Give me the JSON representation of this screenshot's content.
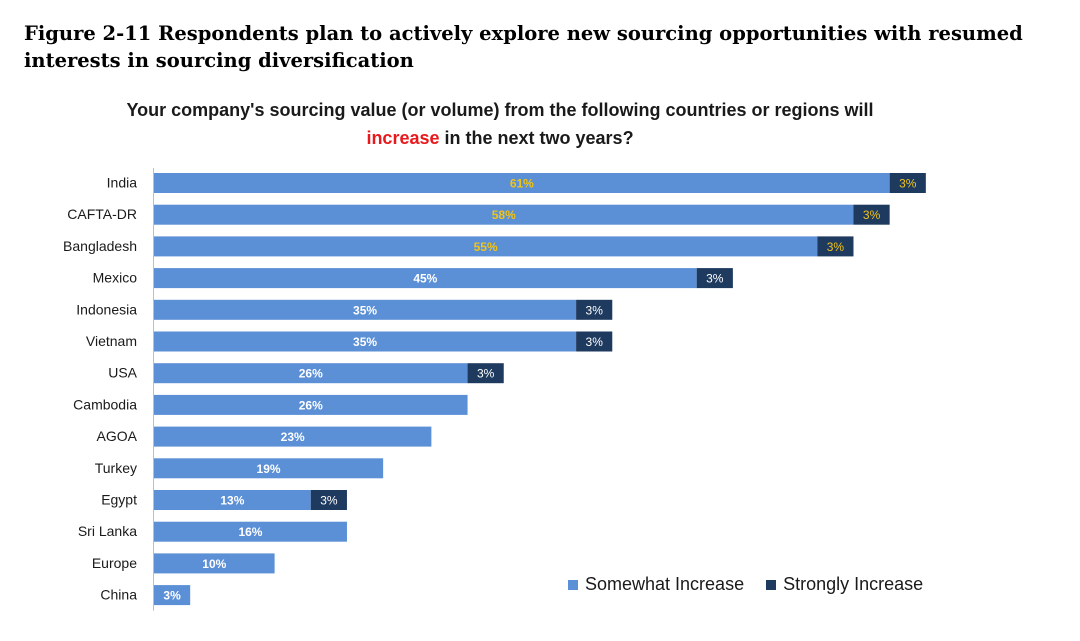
{
  "figure_title": "Figure 2-11 Respondents plan to actively explore new sourcing opportunities with resumed interests in sourcing diversification",
  "chart_title_part1": "Your company's sourcing value (or volume) from the following countries or regions will",
  "chart_title_highlight": "increase",
  "chart_title_part2": "in the next two years?",
  "colors": {
    "somewhat": "#5b8fd6",
    "strongly": "#1f3a5f",
    "highlight_label": "#f0c419",
    "title_highlight": "#e8191c"
  },
  "chart_data": {
    "type": "bar",
    "orientation": "horizontal",
    "stacked": true,
    "categories": [
      "India",
      "CAFTA-DR",
      "Bangladesh",
      "Mexico",
      "Indonesia",
      "Vietnam",
      "USA",
      "Cambodia",
      "AGOA",
      "Turkey",
      "Egypt",
      "Sri Lanka",
      "Europe",
      "China"
    ],
    "series": [
      {
        "name": "Somewhat Increase",
        "values": [
          61,
          58,
          55,
          45,
          35,
          35,
          26,
          26,
          23,
          19,
          13,
          16,
          10,
          3
        ],
        "labels": [
          "61%",
          "58%",
          "55%",
          "45%",
          "35%",
          "35%",
          "26%",
          "26%",
          "23%",
          "19%",
          "13%",
          "16%",
          "10%",
          "3%"
        ]
      },
      {
        "name": "Strongly Increase",
        "values": [
          3,
          3,
          3,
          3,
          3,
          3,
          3,
          0,
          0,
          0,
          3,
          0,
          0,
          0
        ],
        "labels": [
          "3%",
          "3%",
          "3%",
          "3%",
          "3%",
          "3%",
          "3%",
          "",
          "",
          "",
          "3%",
          "",
          "",
          ""
        ]
      }
    ],
    "highlighted_categories": [
      "India",
      "CAFTA-DR",
      "Bangladesh"
    ],
    "title": "Your company's sourcing value (or volume) from the following countries or regions will increase in the next two years?",
    "xlabel": "",
    "ylabel": "",
    "xlim": [
      0,
      64
    ],
    "grid": false,
    "legend_position": "bottom-right"
  }
}
